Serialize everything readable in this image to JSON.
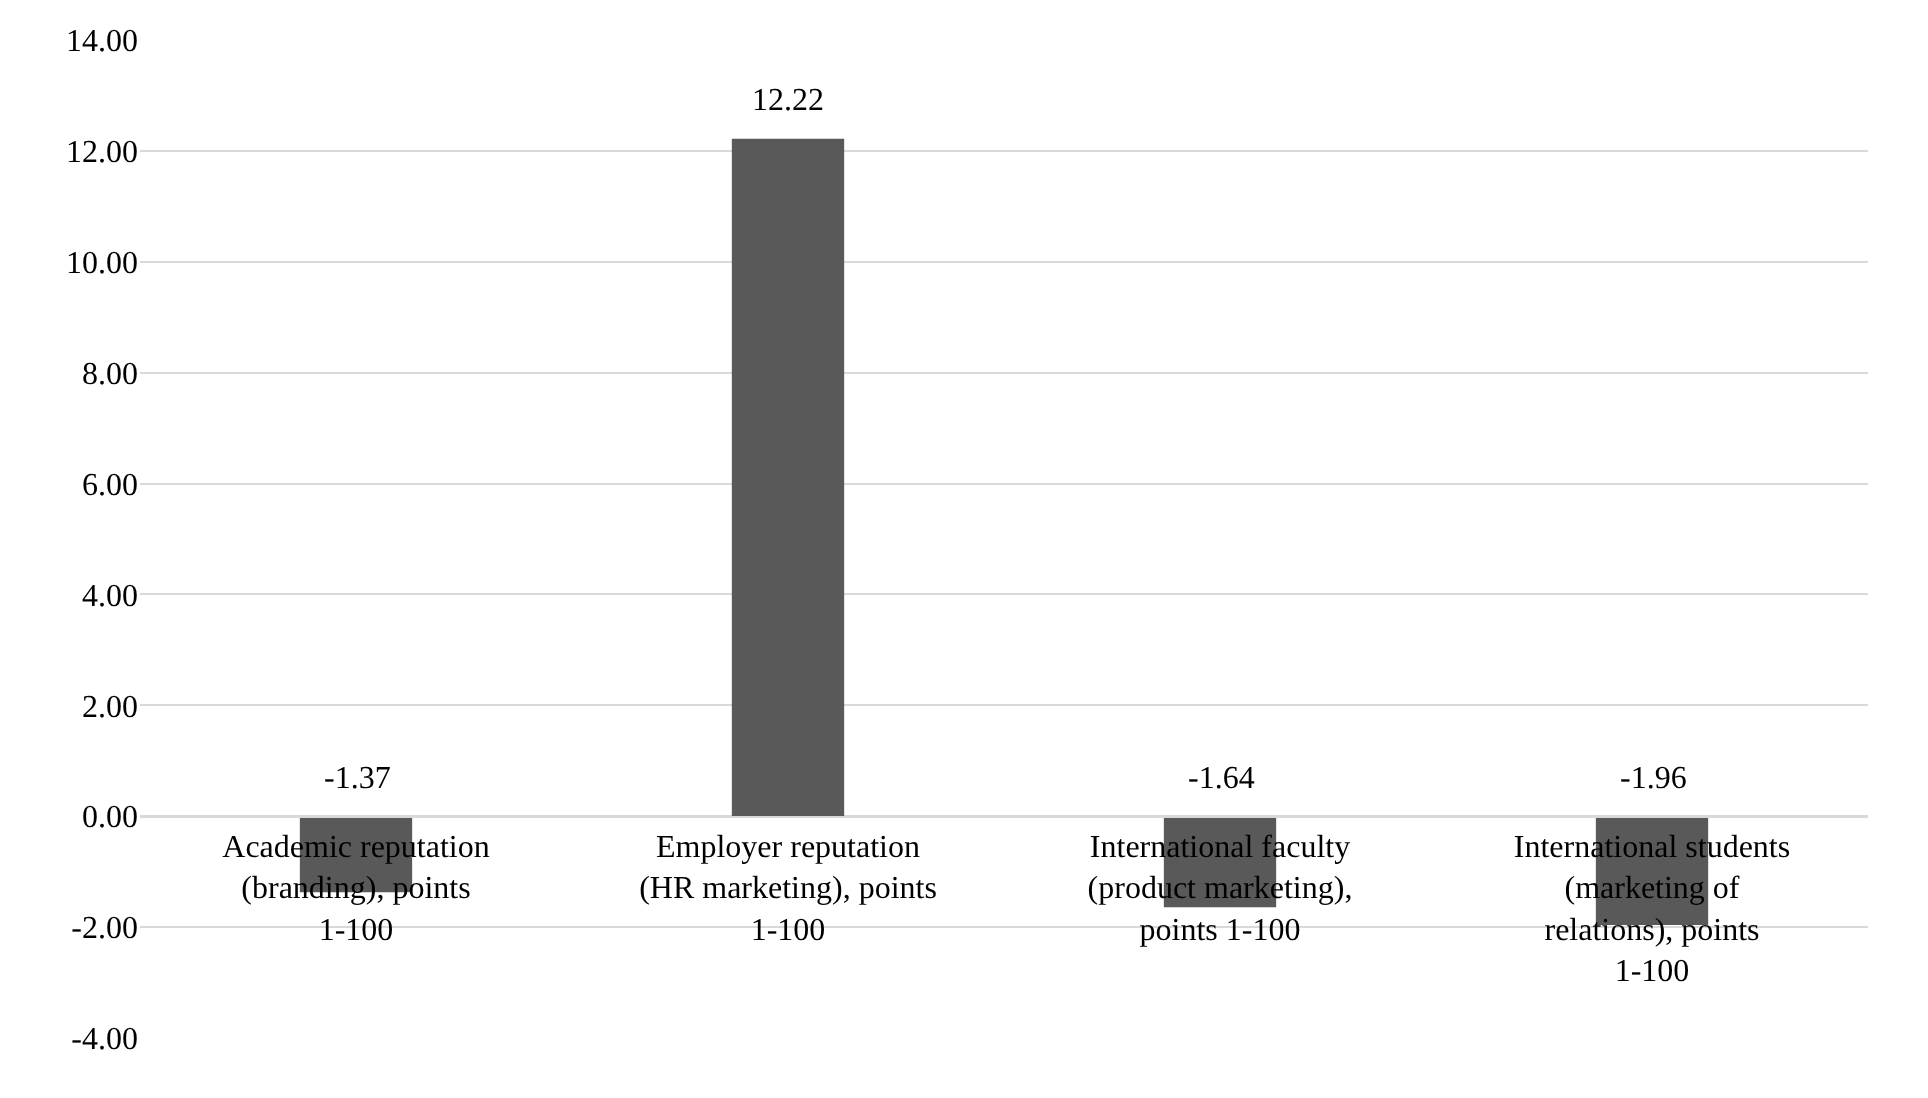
{
  "chart_data": {
    "type": "bar",
    "categories": [
      "Academic reputation (branding), points 1-100",
      "Employer reputation (HR marketing), points 1-100",
      "International faculty (product marketing), points 1-100",
      "International students (marketing of relations), points 1-100"
    ],
    "values": [
      -1.37,
      12.22,
      -1.64,
      -1.96
    ],
    "color": "#595959",
    "ylim": [
      -4,
      14
    ],
    "yticks": [
      {
        "value": -4,
        "label": "-4.00"
      },
      {
        "value": -2,
        "label": "-2.00"
      },
      {
        "value": 0,
        "label": "0.00"
      },
      {
        "value": 2,
        "label": "2.00"
      },
      {
        "value": 4,
        "label": "4.00"
      },
      {
        "value": 6,
        "label": "6.00"
      },
      {
        "value": 8,
        "label": "8.00"
      },
      {
        "value": 10,
        "label": "10.00"
      },
      {
        "value": 12,
        "label": "12.00"
      },
      {
        "value": 14,
        "label": "14.00"
      }
    ],
    "grid": "y",
    "data_labels": true,
    "legend": false
  }
}
